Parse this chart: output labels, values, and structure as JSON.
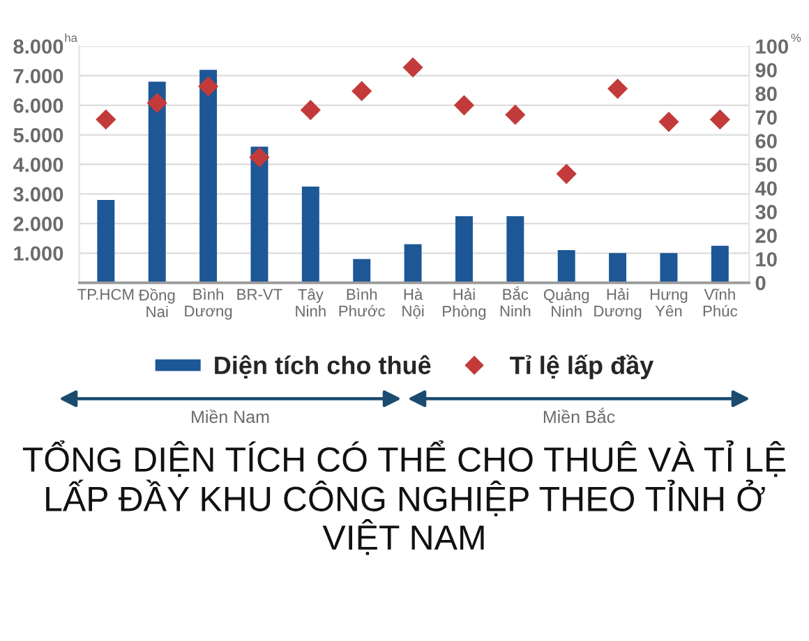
{
  "chart_data": {
    "type": "bar",
    "title": "TỔNG DIỆN TÍCH CÓ THỂ CHO THUÊ VÀ TỈ LỆ LẤP ĐẦY KHU CÔNG NGHIỆP THEO TỈNH Ở VIỆT NAM",
    "ylabel": "ha",
    "y2label": "%",
    "categories": [
      "TP.HCM",
      "Đồng Nai",
      "Bình Dương",
      "BR-VT",
      "Tây Ninh",
      "Bình Phước",
      "Hà Nội",
      "Hải Phòng",
      "Bắc Ninh",
      "Quảng Ninh",
      "Hải Dương",
      "Hưng Yên",
      "Vĩnh Phúc"
    ],
    "series": [
      {
        "name": "Diện tích cho thuê",
        "color": "#1d5796",
        "values": [
          2800,
          6800,
          7200,
          4600,
          3250,
          800,
          1300,
          2250,
          2250,
          1100,
          1000,
          1000,
          1250
        ]
      },
      {
        "name": "Tỉ lệ lấp đầy",
        "type": "scatter",
        "axis": "y2",
        "color": "#c23b3a",
        "values": [
          69,
          76,
          83,
          53,
          73,
          81,
          91,
          75,
          71,
          46,
          82,
          68,
          69
        ]
      }
    ],
    "ylim": [
      0,
      8000
    ],
    "yticks": [
      {
        "value": 1000,
        "label": "1.000"
      },
      {
        "value": 2000,
        "label": "2.000"
      },
      {
        "value": 3000,
        "label": "3.000"
      },
      {
        "value": 4000,
        "label": "4.000"
      },
      {
        "value": 5000,
        "label": "5.000"
      },
      {
        "value": 6000,
        "label": "6.000"
      },
      {
        "value": 7000,
        "label": "7.000"
      },
      {
        "value": 8000,
        "label": "8.000"
      }
    ],
    "y2lim": [
      0,
      100
    ],
    "y2ticks": [
      0,
      10,
      20,
      30,
      40,
      50,
      60,
      70,
      80,
      90,
      100
    ],
    "grid": "y",
    "legend": "bottom",
    "marker": "diamond",
    "annotations": [
      "Miền Nam",
      "Miền Bắc"
    ]
  }
}
